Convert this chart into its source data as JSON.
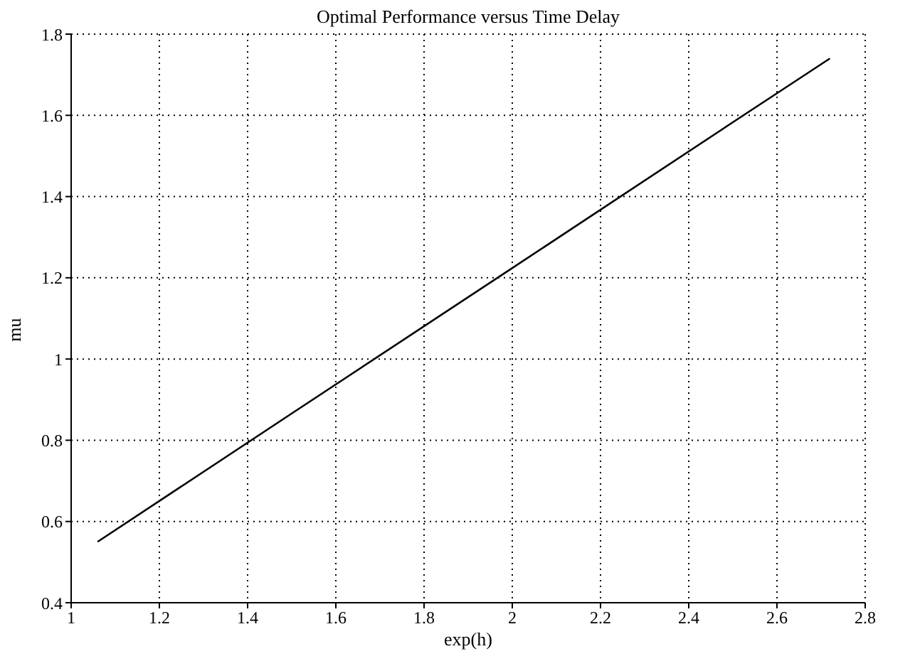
{
  "chart_data": {
    "type": "line",
    "title": "Optimal Performance versus Time Delay",
    "xlabel": "exp(h)",
    "ylabel": "mu",
    "x": [
      1.06,
      1.5,
      2,
      2.5,
      2.72
    ],
    "series": [
      {
        "color": "#000000",
        "values": [
          0.55,
          0.866,
          1.224,
          1.583,
          1.74
        ]
      }
    ],
    "xlim": [
      1,
      2.8
    ],
    "xticks": [
      1,
      1.2,
      1.4,
      1.6,
      1.8,
      2,
      2.2,
      2.4,
      2.6,
      2.8
    ],
    "ylim": [
      0.4,
      1.8
    ],
    "yticks": [
      0.4,
      0.6,
      0.8,
      1,
      1.2,
      1.4,
      1.6,
      1.8
    ],
    "grid": true,
    "legend": false,
    "marker": "none",
    "line_style": "solid"
  }
}
